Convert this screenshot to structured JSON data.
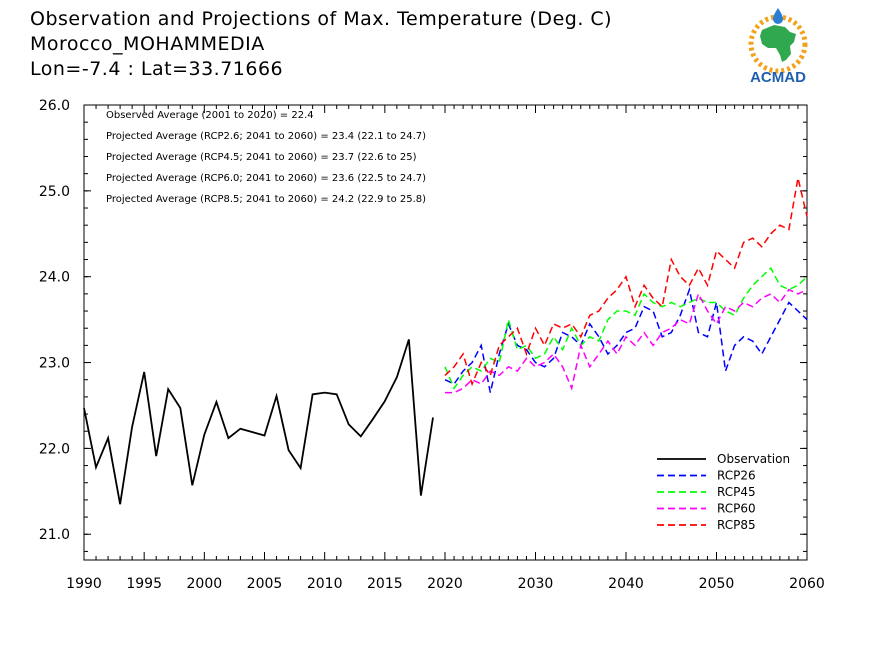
{
  "header": {
    "line1": "Observation and Projections of Max. Temperature (Deg. C)",
    "line2": "Morocco_MOHAMMEDIA",
    "line3": "Lon=-7.4 : Lat=33.71666"
  },
  "logo": {
    "text": "ACMAD"
  },
  "annotations": [
    "Observed Average (2001 to 2020) = 22.4",
    "Projected Average (RCP2.6; 2041 to 2060) = 23.4 (22.1 to 24.7)",
    "Projected Average (RCP4.5; 2041 to 2060) = 23.7 (22.6 to 25)",
    "Projected Average (RCP6.0; 2041 to 2060) = 23.6 (22.5 to 24.7)",
    "Projected Average (RCP8.5; 2041 to 2060) = 24.2 (22.9 to 25.8)"
  ],
  "chart_data": {
    "type": "line",
    "xlim": [
      1990,
      2060
    ],
    "ylim": [
      20.7,
      26.0
    ],
    "x_major_ticks": [
      1990,
      1995,
      2000,
      2005,
      2010,
      2015,
      2020,
      2030,
      2040,
      2050,
      2060
    ],
    "y_ticks": [
      21.0,
      22.0,
      23.0,
      24.0,
      25.0,
      26.0
    ],
    "y_tick_labels": [
      "21.0",
      "22.0",
      "23.0",
      "24.0",
      "25.0",
      "26.0"
    ],
    "legend_position": "bottom-right",
    "series": [
      {
        "name": "Observation",
        "color": "#000000",
        "dashed": false,
        "x": [
          1990,
          1991,
          1992,
          1993,
          1994,
          1995,
          1996,
          1997,
          1998,
          1999,
          2000,
          2001,
          2002,
          2003,
          2004,
          2005,
          2006,
          2007,
          2008,
          2009,
          2010,
          2011,
          2012,
          2013,
          2014,
          2015,
          2016,
          2017,
          2018,
          2019,
          2020
        ],
        "y": [
          22.47,
          21.78,
          22.12,
          21.35,
          22.25,
          22.89,
          21.91,
          22.69,
          22.47,
          21.57,
          22.16,
          22.54,
          22.12,
          22.23,
          22.19,
          22.15,
          22.61,
          21.98,
          21.77,
          22.63,
          22.65,
          22.63,
          22.28,
          22.14,
          22.34,
          22.55,
          22.83,
          23.27,
          21.45,
          22.36,
          null
        ]
      },
      {
        "name": "RCP26",
        "color": "#0000ff",
        "dashed": true,
        "x": [
          2020,
          2021,
          2022,
          2023,
          2024,
          2025,
          2026,
          2027,
          2028,
          2029,
          2030,
          2031,
          2032,
          2033,
          2034,
          2035,
          2036,
          2037,
          2038,
          2039,
          2040,
          2041,
          2042,
          2043,
          2044,
          2045,
          2046,
          2047,
          2048,
          2049,
          2050,
          2051,
          2052,
          2053,
          2054,
          2055,
          2056,
          2057,
          2058,
          2059,
          2060
        ],
        "y": [
          22.8,
          22.75,
          22.9,
          23.0,
          23.2,
          22.65,
          23.1,
          23.45,
          23.2,
          23.15,
          23.0,
          22.95,
          23.05,
          23.35,
          23.3,
          23.2,
          23.45,
          23.3,
          23.1,
          23.2,
          23.35,
          23.4,
          23.65,
          23.6,
          23.3,
          23.35,
          23.55,
          23.85,
          23.35,
          23.3,
          23.7,
          22.9,
          23.2,
          23.3,
          23.25,
          23.1,
          23.3,
          23.5,
          23.7,
          23.6,
          23.5
        ]
      },
      {
        "name": "RCP45",
        "color": "#00ff00",
        "dashed": true,
        "x": [
          2020,
          2021,
          2022,
          2023,
          2024,
          2025,
          2026,
          2027,
          2028,
          2029,
          2030,
          2031,
          2032,
          2033,
          2034,
          2035,
          2036,
          2037,
          2038,
          2039,
          2040,
          2041,
          2042,
          2043,
          2044,
          2045,
          2046,
          2047,
          2048,
          2049,
          2050,
          2051,
          2052,
          2053,
          2054,
          2055,
          2056,
          2057,
          2058,
          2059,
          2060
        ],
        "y": [
          22.95,
          22.7,
          22.85,
          22.95,
          22.9,
          23.05,
          23.0,
          23.5,
          23.15,
          23.2,
          23.05,
          23.1,
          23.3,
          23.15,
          23.4,
          23.2,
          23.3,
          23.25,
          23.5,
          23.6,
          23.6,
          23.55,
          23.8,
          23.7,
          23.65,
          23.7,
          23.65,
          23.7,
          23.75,
          23.7,
          23.7,
          23.6,
          23.55,
          23.75,
          23.9,
          24.0,
          24.1,
          23.9,
          23.85,
          23.9,
          24.0
        ]
      },
      {
        "name": "RCP60",
        "color": "#ff00ff",
        "dashed": true,
        "x": [
          2020,
          2021,
          2022,
          2023,
          2024,
          2025,
          2026,
          2027,
          2028,
          2029,
          2030,
          2031,
          2032,
          2033,
          2034,
          2035,
          2036,
          2037,
          2038,
          2039,
          2040,
          2041,
          2042,
          2043,
          2044,
          2045,
          2046,
          2047,
          2048,
          2049,
          2050,
          2051,
          2052,
          2053,
          2054,
          2055,
          2056,
          2057,
          2058,
          2059,
          2060
        ],
        "y": [
          22.65,
          22.65,
          22.7,
          22.8,
          22.75,
          22.9,
          22.85,
          22.95,
          22.9,
          23.05,
          22.95,
          23.0,
          23.1,
          22.95,
          22.7,
          23.2,
          22.95,
          23.1,
          23.25,
          23.1,
          23.3,
          23.2,
          23.35,
          23.2,
          23.35,
          23.4,
          23.5,
          23.45,
          23.8,
          23.6,
          23.45,
          23.65,
          23.6,
          23.7,
          23.65,
          23.75,
          23.8,
          23.7,
          23.85,
          23.8,
          23.85
        ]
      },
      {
        "name": "RCP85",
        "color": "#ff0000",
        "dashed": true,
        "x": [
          2020,
          2021,
          2022,
          2023,
          2024,
          2025,
          2026,
          2027,
          2028,
          2029,
          2030,
          2031,
          2032,
          2033,
          2034,
          2035,
          2036,
          2037,
          2038,
          2039,
          2040,
          2041,
          2042,
          2043,
          2044,
          2045,
          2046,
          2047,
          2048,
          2049,
          2050,
          2051,
          2052,
          2053,
          2054,
          2055,
          2056,
          2057,
          2058,
          2059,
          2060
        ],
        "y": [
          22.85,
          22.95,
          23.1,
          22.75,
          23.0,
          22.85,
          23.2,
          23.3,
          23.4,
          23.1,
          23.4,
          23.2,
          23.45,
          23.4,
          23.45,
          23.3,
          23.55,
          23.6,
          23.75,
          23.85,
          24.0,
          23.65,
          23.9,
          23.75,
          23.65,
          24.2,
          24.0,
          23.9,
          24.1,
          23.9,
          24.3,
          24.2,
          24.1,
          24.4,
          24.45,
          24.35,
          24.5,
          24.6,
          24.55,
          25.15,
          24.7
        ]
      }
    ]
  }
}
